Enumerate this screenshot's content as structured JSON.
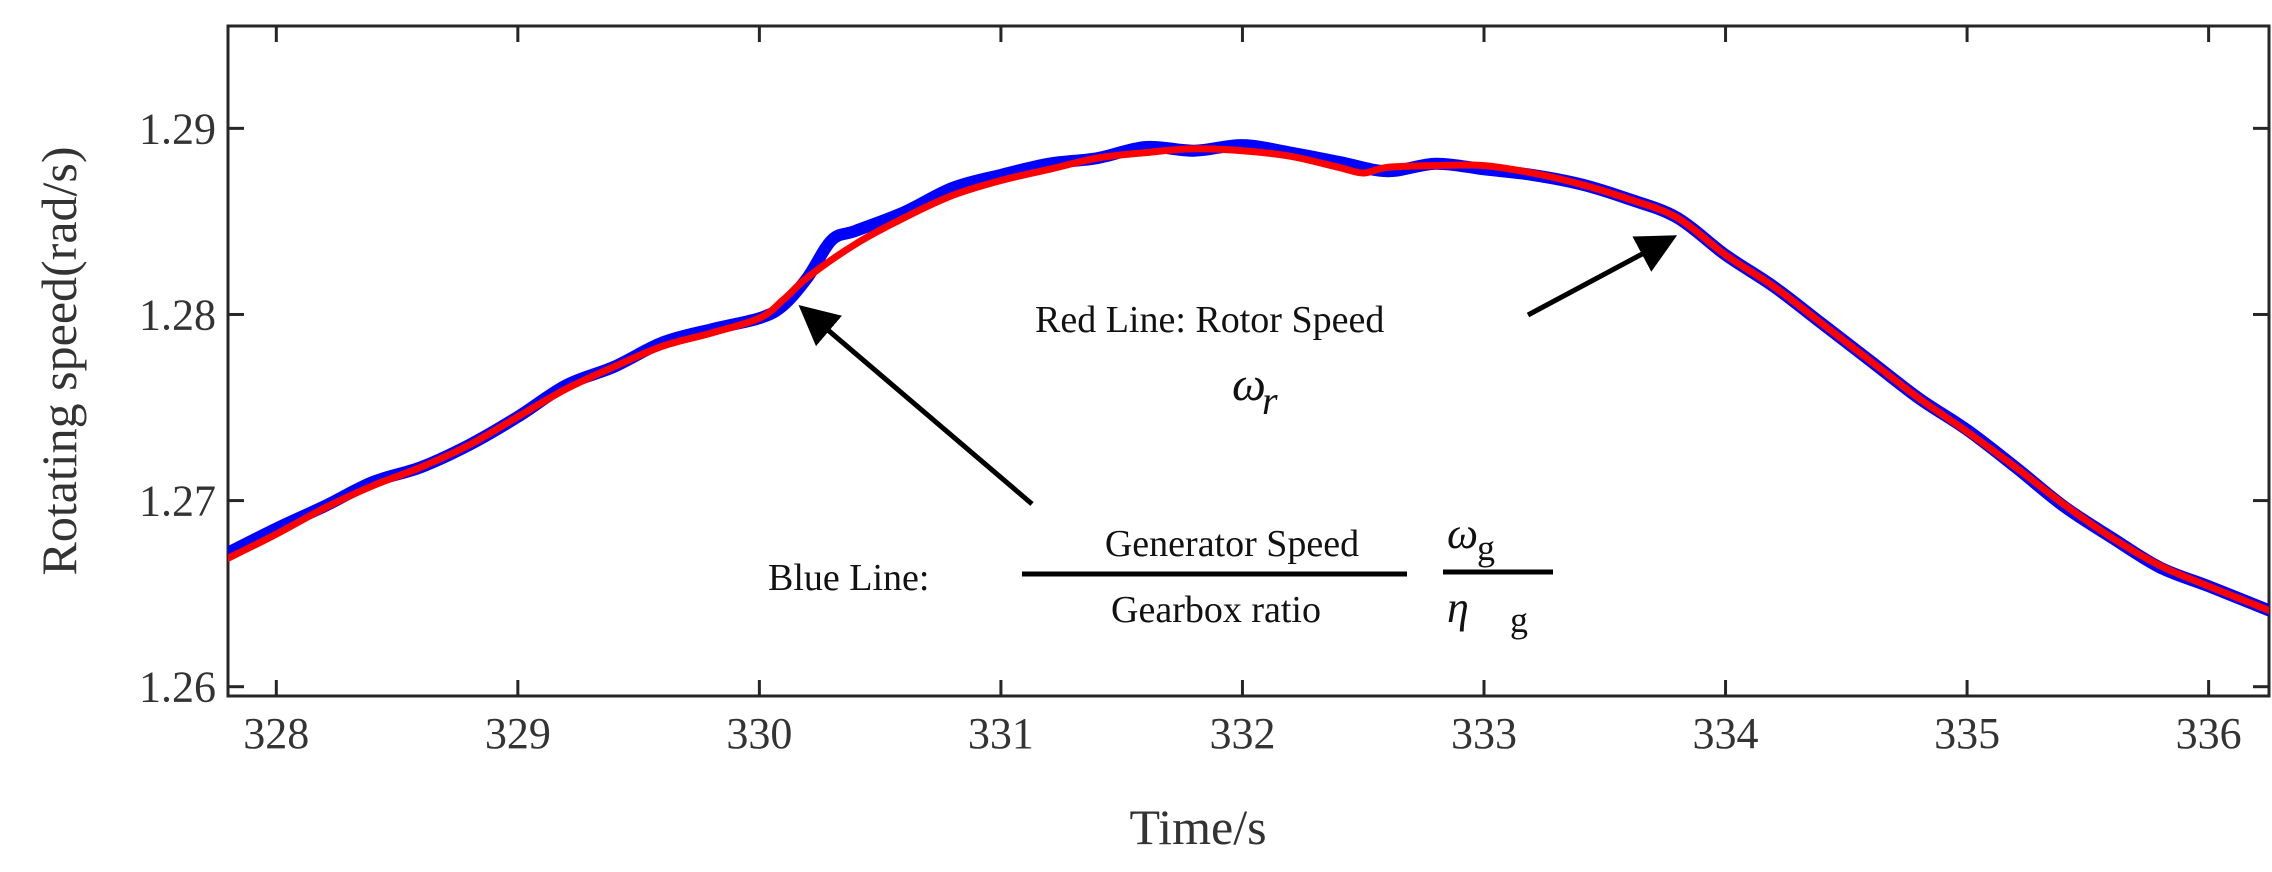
{
  "chart_data": {
    "type": "line",
    "title": "",
    "xlabel": "Time/s",
    "ylabel": "Rotating speed(rad/s)",
    "xlim": [
      327.8,
      336.25
    ],
    "ylim": [
      1.2595,
      1.2955
    ],
    "xticks": [
      328,
      329,
      330,
      331,
      332,
      333,
      334,
      335,
      336
    ],
    "yticks": [
      1.26,
      1.27,
      1.28,
      1.29
    ],
    "xtick_labels": [
      "328",
      "329",
      "330",
      "331",
      "332",
      "333",
      "334",
      "335",
      "336"
    ],
    "ytick_labels": [
      "1.26",
      "1.27",
      "1.28",
      "1.29"
    ],
    "grid": false,
    "series": [
      {
        "name": "Generator Speed / Gearbox ratio",
        "color": "#0000ff",
        "x": [
          327.8,
          328.0,
          328.2,
          328.4,
          328.6,
          328.8,
          329.0,
          329.2,
          329.4,
          329.6,
          329.8,
          330.0,
          330.1,
          330.2,
          330.3,
          330.4,
          330.6,
          330.8,
          331.0,
          331.2,
          331.4,
          331.6,
          331.8,
          332.0,
          332.2,
          332.4,
          332.6,
          332.8,
          333.0,
          333.2,
          333.4,
          333.6,
          333.8,
          334.0,
          334.2,
          334.4,
          334.6,
          334.8,
          335.0,
          335.2,
          335.4,
          335.6,
          335.8,
          336.0,
          336.25
        ],
        "values": [
          1.2672,
          1.2685,
          1.2697,
          1.271,
          1.2718,
          1.273,
          1.2745,
          1.2762,
          1.2772,
          1.2785,
          1.2792,
          1.2798,
          1.2805,
          1.282,
          1.284,
          1.2845,
          1.2855,
          1.2868,
          1.2875,
          1.2881,
          1.2884,
          1.289,
          1.2888,
          1.2891,
          1.2887,
          1.2882,
          1.2877,
          1.2881,
          1.2878,
          1.2875,
          1.287,
          1.2862,
          1.2852,
          1.2832,
          1.2815,
          1.2795,
          1.2775,
          1.2755,
          1.2738,
          1.2718,
          1.2697,
          1.268,
          1.2664,
          1.2654,
          1.2641
        ]
      },
      {
        "name": "Rotor Speed",
        "color": "#ff0000",
        "x": [
          327.8,
          328.0,
          328.2,
          328.4,
          328.6,
          328.8,
          329.0,
          329.2,
          329.4,
          329.6,
          329.8,
          330.0,
          330.1,
          330.2,
          330.4,
          330.6,
          330.8,
          331.0,
          331.2,
          331.4,
          331.6,
          331.8,
          332.0,
          332.2,
          332.4,
          332.5,
          332.6,
          332.8,
          333.0,
          333.2,
          333.4,
          333.6,
          333.8,
          334.0,
          334.2,
          334.4,
          334.6,
          334.8,
          335.0,
          335.2,
          335.4,
          335.6,
          335.8,
          336.0,
          336.25
        ],
        "values": [
          1.2669,
          1.2682,
          1.2696,
          1.2708,
          1.2718,
          1.273,
          1.2745,
          1.276,
          1.2772,
          1.2783,
          1.279,
          1.2798,
          1.2808,
          1.282,
          1.2838,
          1.2852,
          1.2864,
          1.2872,
          1.2878,
          1.2884,
          1.2887,
          1.2889,
          1.2888,
          1.2885,
          1.2879,
          1.2876,
          1.2879,
          1.288,
          1.288,
          1.2876,
          1.287,
          1.2862,
          1.2852,
          1.2832,
          1.2815,
          1.2795,
          1.2775,
          1.2755,
          1.2737,
          1.2718,
          1.2698,
          1.268,
          1.2665,
          1.2654,
          1.2641
        ]
      }
    ],
    "annotations": {
      "red_label": "Red Line:  Rotor Speed",
      "red_symbol": "ω",
      "red_symbol_sub": "r",
      "blue_label": "Blue Line:",
      "blue_numerator": "Generator Speed",
      "blue_denominator": "Gearbox ratio",
      "blue_symbol_num": "ω",
      "blue_symbol_num_sub": "g",
      "blue_symbol_den": "η",
      "blue_symbol_den_sub": "g",
      "red_arrow_target": [
        333.8,
        1.2843
      ],
      "blue_arrow_target": [
        330.15,
        1.2806
      ]
    }
  }
}
